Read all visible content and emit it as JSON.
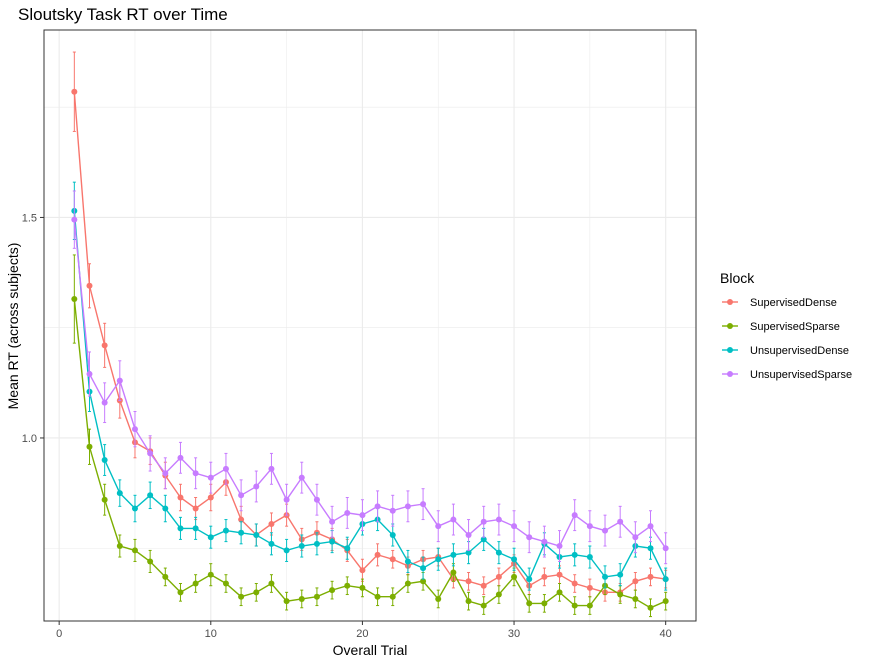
{
  "chart_data": {
    "type": "line",
    "title": "Sloutsky Task RT over Time",
    "xlabel": "Overall Trial",
    "ylabel": "Mean RT (across subjects)",
    "xlim": [
      -1,
      42
    ],
    "ylim": [
      0.585,
      1.925
    ],
    "x_ticks": [
      0,
      10,
      20,
      30,
      40
    ],
    "y_ticks": [
      1.0,
      1.5
    ],
    "x_tick_labels": [
      "0",
      "10",
      "20",
      "30",
      "40"
    ],
    "y_tick_labels": [
      "1.0",
      "1.5"
    ],
    "grid": true,
    "legend": {
      "title": "Block",
      "position": "right"
    },
    "x": [
      1,
      2,
      3,
      4,
      5,
      6,
      7,
      8,
      9,
      10,
      11,
      12,
      13,
      14,
      15,
      16,
      17,
      18,
      19,
      20,
      21,
      22,
      23,
      24,
      25,
      26,
      27,
      28,
      29,
      30,
      31,
      32,
      33,
      34,
      35,
      36,
      37,
      38,
      39,
      40
    ],
    "series": [
      {
        "name": "SupervisedDense",
        "color": "#F8766D",
        "values": [
          1.785,
          1.345,
          1.21,
          1.085,
          0.99,
          0.97,
          0.915,
          0.865,
          0.84,
          0.865,
          0.9,
          0.815,
          0.78,
          0.805,
          0.825,
          0.77,
          0.785,
          0.77,
          0.745,
          0.7,
          0.735,
          0.725,
          0.71,
          0.725,
          0.73,
          0.68,
          0.675,
          0.665,
          0.685,
          0.715,
          0.665,
          0.685,
          0.69,
          0.67,
          0.66,
          0.65,
          0.65,
          0.675,
          0.685,
          0.68
        ],
        "errors": [
          0.09,
          0.05,
          0.05,
          0.04,
          0.035,
          0.03,
          0.03,
          0.03,
          0.025,
          0.03,
          0.03,
          0.03,
          0.025,
          0.025,
          0.025,
          0.025,
          0.025,
          0.025,
          0.025,
          0.025,
          0.025,
          0.02,
          0.02,
          0.02,
          0.02,
          0.02,
          0.02,
          0.02,
          0.02,
          0.02,
          0.02,
          0.02,
          0.02,
          0.02,
          0.02,
          0.02,
          0.02,
          0.02,
          0.02,
          0.02
        ]
      },
      {
        "name": "SupervisedSparse",
        "color": "#7CAE00",
        "values": [
          1.315,
          0.98,
          0.86,
          0.755,
          0.745,
          0.72,
          0.685,
          0.65,
          0.67,
          0.69,
          0.67,
          0.64,
          0.65,
          0.67,
          0.63,
          0.635,
          0.64,
          0.655,
          0.665,
          0.66,
          0.64,
          0.64,
          0.67,
          0.675,
          0.635,
          0.695,
          0.63,
          0.62,
          0.645,
          0.685,
          0.625,
          0.625,
          0.65,
          0.62,
          0.62,
          0.665,
          0.645,
          0.635,
          0.615,
          0.63
        ],
        "errors": [
          0.1,
          0.04,
          0.035,
          0.025,
          0.025,
          0.025,
          0.02,
          0.02,
          0.02,
          0.025,
          0.02,
          0.02,
          0.02,
          0.02,
          0.02,
          0.02,
          0.02,
          0.02,
          0.02,
          0.02,
          0.02,
          0.02,
          0.02,
          0.02,
          0.02,
          0.02,
          0.02,
          0.02,
          0.02,
          0.02,
          0.02,
          0.02,
          0.02,
          0.02,
          0.02,
          0.02,
          0.02,
          0.02,
          0.02,
          0.02
        ]
      },
      {
        "name": "UnsupervisedDense",
        "color": "#00BFC4",
        "values": [
          1.515,
          1.105,
          0.95,
          0.875,
          0.84,
          0.87,
          0.84,
          0.795,
          0.795,
          0.775,
          0.79,
          0.785,
          0.78,
          0.76,
          0.745,
          0.755,
          0.76,
          0.765,
          0.75,
          0.805,
          0.815,
          0.78,
          0.72,
          0.705,
          0.725,
          0.735,
          0.74,
          0.77,
          0.74,
          0.725,
          0.68,
          0.76,
          0.73,
          0.735,
          0.73,
          0.685,
          0.69,
          0.755,
          0.75,
          0.68
        ],
        "errors": [
          0.065,
          0.045,
          0.035,
          0.03,
          0.03,
          0.03,
          0.03,
          0.025,
          0.025,
          0.025,
          0.025,
          0.025,
          0.025,
          0.025,
          0.025,
          0.025,
          0.025,
          0.025,
          0.025,
          0.025,
          0.025,
          0.025,
          0.025,
          0.025,
          0.025,
          0.025,
          0.025,
          0.025,
          0.025,
          0.025,
          0.025,
          0.025,
          0.025,
          0.025,
          0.025,
          0.025,
          0.025,
          0.025,
          0.025,
          0.025
        ]
      },
      {
        "name": "UnsupervisedSparse",
        "color": "#C77CFF",
        "values": [
          1.495,
          1.145,
          1.08,
          1.13,
          1.02,
          0.965,
          0.92,
          0.955,
          0.92,
          0.91,
          0.93,
          0.87,
          0.89,
          0.93,
          0.86,
          0.91,
          0.86,
          0.81,
          0.83,
          0.825,
          0.845,
          0.835,
          0.845,
          0.85,
          0.8,
          0.815,
          0.78,
          0.81,
          0.815,
          0.8,
          0.775,
          0.765,
          0.755,
          0.825,
          0.8,
          0.79,
          0.81,
          0.775,
          0.8,
          0.75
        ],
        "errors": [
          0.065,
          0.05,
          0.045,
          0.045,
          0.04,
          0.04,
          0.035,
          0.035,
          0.035,
          0.035,
          0.035,
          0.035,
          0.035,
          0.035,
          0.035,
          0.035,
          0.035,
          0.035,
          0.035,
          0.035,
          0.035,
          0.035,
          0.035,
          0.035,
          0.035,
          0.035,
          0.035,
          0.035,
          0.035,
          0.035,
          0.035,
          0.035,
          0.035,
          0.035,
          0.035,
          0.035,
          0.035,
          0.035,
          0.035,
          0.035
        ]
      }
    ]
  }
}
